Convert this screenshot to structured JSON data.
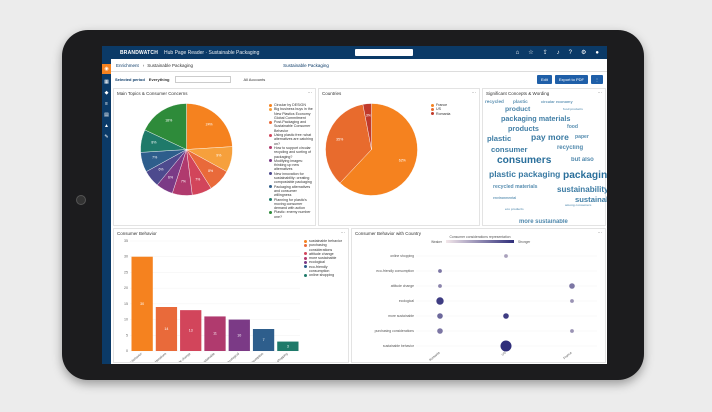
{
  "topbar": {
    "brand": "BRANDWATCH",
    "crumb": "Hub Page Reader · Sustainable Packaging",
    "icons": [
      "home-icon",
      "star-icon",
      "share-icon",
      "bell-icon",
      "help-icon",
      "settings-icon",
      "user-icon"
    ]
  },
  "sidebar": {
    "icons": [
      "feed-icon",
      "chart-icon",
      "tag-icon",
      "list-icon",
      "doc-icon",
      "alert-icon",
      "tool-icon"
    ]
  },
  "subbar": {
    "item1": "Enrichment",
    "item2": "Sustainable Packaging",
    "item3": "Sustainable Packaging"
  },
  "filterbar": {
    "label": "Selected period",
    "value": "Everything",
    "accounts": "All Accounts"
  },
  "buttons": {
    "edit": "Edit",
    "export": "Export to PDF"
  },
  "panels": {
    "main_topics": {
      "title": "Main Topics & Consumer Concerns"
    },
    "countries": {
      "title": "Countries"
    },
    "concepts": {
      "title": "Significant Concepts & Wording"
    },
    "behavior": {
      "title": "Consumer Behavior"
    },
    "behavior_country": {
      "title": "Consumer Behavior with Country"
    }
  },
  "topics_legend": [
    {
      "label": "Circular by DESIGN",
      "color": "#f5821f"
    },
    {
      "label": "Big business buys in the New Plastics Economy Global Commitment",
      "color": "#f6a03c"
    },
    {
      "label": "Post-Packaging and Sustainable Consumer Behavior",
      "color": "#e96a3a"
    },
    {
      "label": "Using plastic free: what alternatives are catching on?",
      "color": "#d2455b"
    },
    {
      "label": "How to support circular recycling and sorting of packaging?",
      "color": "#b03a6e"
    },
    {
      "label": "Modifying images: thinking up new alternatives",
      "color": "#7b3a86"
    },
    {
      "label": "New innovation for sustainability: creating compostable packaging",
      "color": "#4d4a8e"
    },
    {
      "label": "Packaging alternatives and consumer willingness",
      "color": "#2e5e8c"
    },
    {
      "label": "Planning for plastic's moving consumer demand with action",
      "color": "#1f7a6a"
    },
    {
      "label": "Plastic: enemy number one?",
      "color": "#2e8b3a"
    }
  ],
  "topics_pie_values": [
    24,
    9,
    8,
    7,
    7,
    6,
    6,
    7,
    8,
    18
  ],
  "countries_legend": [
    {
      "label": "France",
      "color": "#f5821f"
    },
    {
      "label": "US",
      "color": "#e86b2d"
    },
    {
      "label": "Romania",
      "color": "#c0392b"
    }
  ],
  "countries_pie_values": [
    62,
    35,
    3
  ],
  "words": [
    {
      "t": "recycled",
      "s": 5.5
    },
    {
      "t": "plastic",
      "s": 5.5
    },
    {
      "t": "circular economy",
      "s": 4.5
    },
    {
      "t": "product",
      "s": 8
    },
    {
      "t": "food products",
      "s": 3.5
    },
    {
      "t": "packaging materials",
      "s": 8.5
    },
    {
      "t": "products",
      "s": 8.5
    },
    {
      "t": "food",
      "s": 6
    },
    {
      "t": "plastic",
      "s": 9
    },
    {
      "t": "pay more",
      "s": 10
    },
    {
      "t": "paper",
      "s": 6
    },
    {
      "t": "consumer",
      "s": 9
    },
    {
      "t": "recycling",
      "s": 7
    },
    {
      "t": "consumers",
      "s": 12
    },
    {
      "t": "but also",
      "s": 7
    },
    {
      "t": "plastic packaging",
      "s": 10
    },
    {
      "t": "packaging",
      "s": 12
    },
    {
      "t": "recycled materials",
      "s": 6
    },
    {
      "t": "sustainability",
      "s": 9.5
    },
    {
      "t": "environmental",
      "s": 4
    },
    {
      "t": "sustainable",
      "s": 9
    },
    {
      "t": "eco products",
      "s": 3.5
    },
    {
      "t": "more sustainable",
      "s": 7
    },
    {
      "t": "among consumers",
      "s": 3.5
    }
  ],
  "behavior_legend": [
    {
      "label": "sustainable behavior",
      "color": "#f5821f"
    },
    {
      "label": "purchasing considerations",
      "color": "#e96a3a"
    },
    {
      "label": "attitude change",
      "color": "#d2455b"
    },
    {
      "label": "more sustainable",
      "color": "#b03a6e"
    },
    {
      "label": "ecological",
      "color": "#7b3a86"
    },
    {
      "label": "eco-friendly consumption",
      "color": "#2e5e8c"
    },
    {
      "label": "online shopping",
      "color": "#1f7a6a"
    }
  ],
  "chart_data": [
    {
      "type": "bar",
      "title": "Consumer Behavior",
      "categories": [
        "sustainable behavior",
        "purchasing considerations",
        "attitude change",
        "more sustainable",
        "ecological",
        "eco-friendly consumption",
        "online shopping"
      ],
      "values": [
        30,
        14,
        13,
        11,
        10,
        7,
        3
      ],
      "bar_labels": [
        "30",
        "14",
        "13",
        "11",
        "10",
        "7",
        "3"
      ],
      "ylim": [
        0,
        35
      ],
      "yticks": [
        "0",
        "5",
        "10",
        "15",
        "20",
        "25",
        "30",
        "35"
      ],
      "colors": [
        "#f5821f",
        "#e96a3a",
        "#d2455b",
        "#b03a6e",
        "#7b3a86",
        "#2e5e8c",
        "#1f7a6a"
      ]
    },
    {
      "type": "scatter",
      "title": "Consumer Behavior with Country",
      "legend_title": "Consumer considerations representation",
      "legend_min": "Weaker",
      "legend_max": "Stronger",
      "rows": [
        "online shopping",
        "eco-friendly consumption",
        "attitude change",
        "ecological",
        "more sustainable",
        "purchasing considerations",
        "sustainable behavior"
      ],
      "cols": [
        "Romania",
        "US",
        "France"
      ],
      "points": [
        {
          "row": 0,
          "col": 1,
          "size": 1,
          "strength": 0.2
        },
        {
          "row": 1,
          "col": 0,
          "size": 1,
          "strength": 0.5
        },
        {
          "row": 2,
          "col": 0,
          "size": 1,
          "strength": 0.4
        },
        {
          "row": 2,
          "col": 2,
          "size": 2,
          "strength": 0.5
        },
        {
          "row": 3,
          "col": 0,
          "size": 3,
          "strength": 0.9
        },
        {
          "row": 3,
          "col": 2,
          "size": 1,
          "strength": 0.3
        },
        {
          "row": 4,
          "col": 0,
          "size": 2,
          "strength": 0.6
        },
        {
          "row": 4,
          "col": 1,
          "size": 2,
          "strength": 0.9
        },
        {
          "row": 5,
          "col": 0,
          "size": 2,
          "strength": 0.5
        },
        {
          "row": 5,
          "col": 2,
          "size": 1,
          "strength": 0.3
        },
        {
          "row": 6,
          "col": 1,
          "size": 5,
          "strength": 1.0
        }
      ]
    }
  ]
}
